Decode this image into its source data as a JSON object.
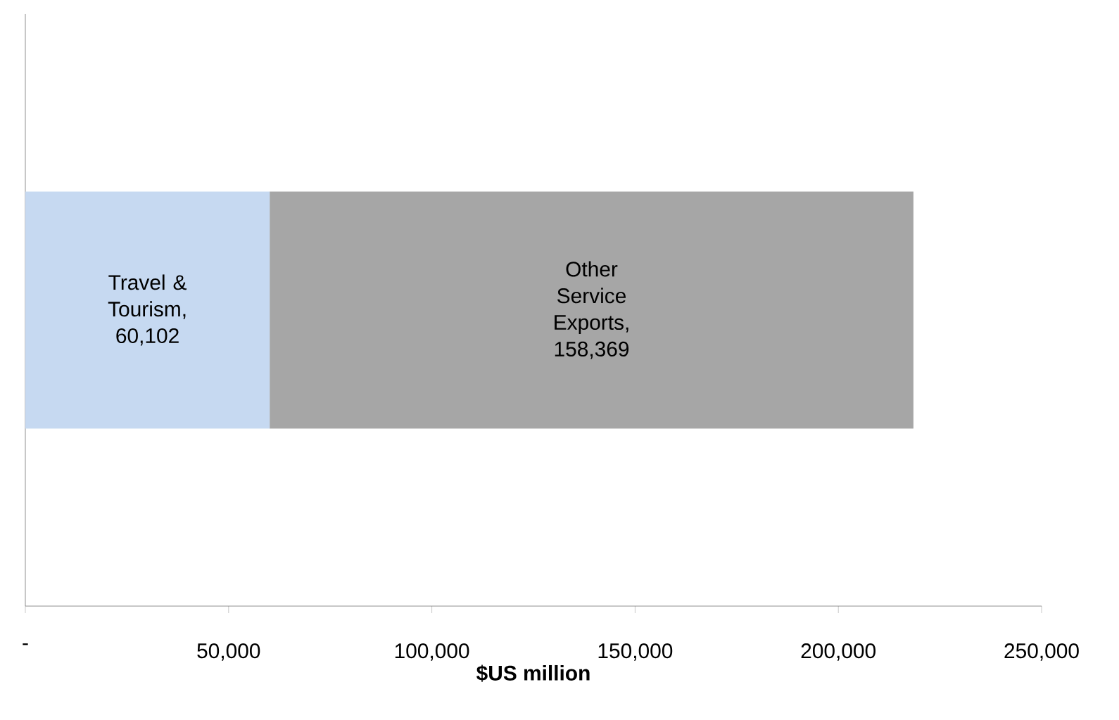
{
  "chart_data": {
    "type": "bar",
    "orientation": "horizontal",
    "stacked": true,
    "categories": [
      null
    ],
    "series": [
      {
        "color": "#c6d9f1",
        "values": [
          60102
        ],
        "value_labels": [
          "Travel & Tourism, 60,102"
        ]
      },
      {
        "color": "#a6a6a6",
        "values": [
          158369
        ],
        "value_labels": [
          "Other Service Exports, 158,369"
        ]
      }
    ],
    "xlabel": "$US million",
    "xlim": [
      0,
      250000
    ],
    "xticks": [
      {
        "value": 0,
        "label": "-"
      },
      {
        "value": 50000,
        "label": "50,000"
      },
      {
        "value": 100000,
        "label": "100,000"
      },
      {
        "value": 150000,
        "label": "150,000"
      },
      {
        "value": 200000,
        "label": "200,000"
      },
      {
        "value": 250000,
        "label": "250,000"
      }
    ],
    "grid": false
  }
}
